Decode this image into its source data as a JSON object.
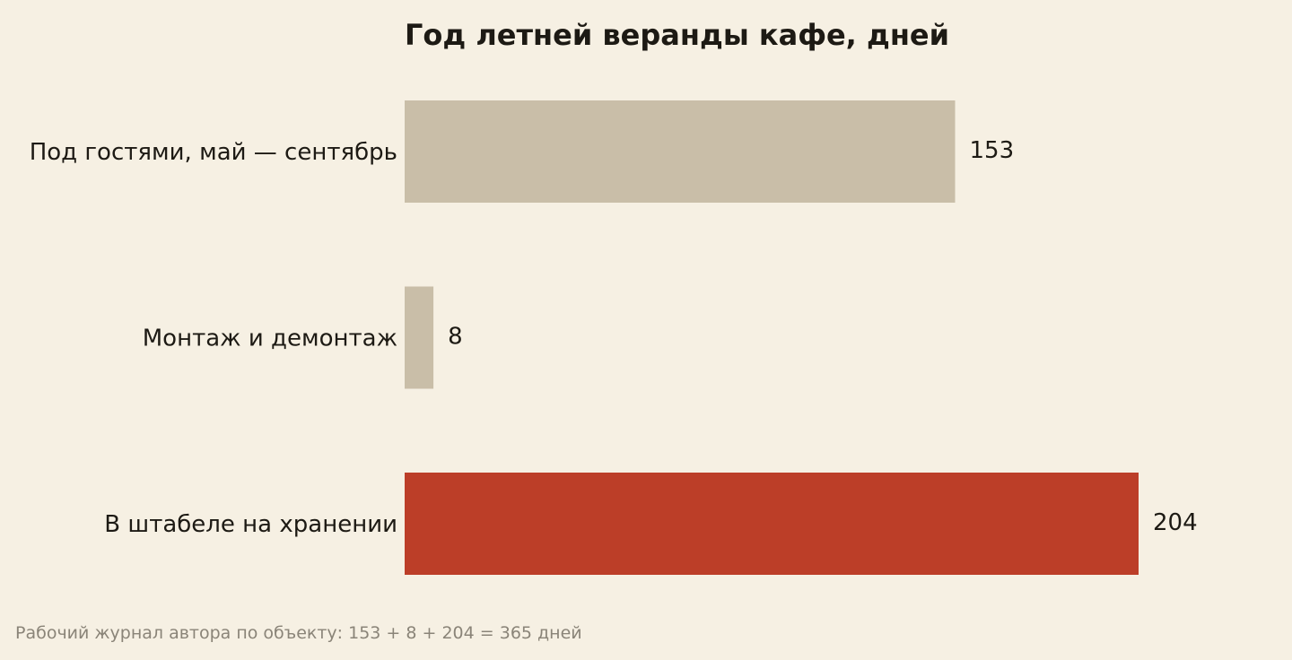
{
  "chart_data": {
    "type": "bar",
    "orientation": "horizontal",
    "title": "Год летней веранды кафе, дней",
    "categories": [
      "Под гостями, май — сентябрь",
      "Монтаж и демонтаж",
      "В штабеле на хранении"
    ],
    "values": [
      153,
      8,
      204
    ],
    "value_labels": [
      "153",
      "8",
      "204"
    ],
    "bar_colors": [
      "#c9bea8",
      "#c9bea8",
      "#bc3e28"
    ],
    "highlight_color": "#bc3e28",
    "base_color": "#c9bea8",
    "xlim": [
      0,
      204
    ],
    "grid": false,
    "legend": "none",
    "xlabel": "",
    "ylabel": ""
  },
  "footnote": "Рабочий журнал автора по объекту: 153 + 8 + 204 = 365 дней"
}
